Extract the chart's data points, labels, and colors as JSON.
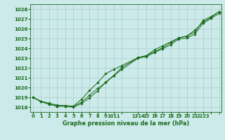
{
  "title": "Graphe pression niveau de la mer (hPa)",
  "bg_color": "#cceaea",
  "grid_color": "#aacccc",
  "line_color": "#1a6b1a",
  "marker_color": "#1a6b1a",
  "ylim": [
    1017.5,
    1028.5
  ],
  "y_ticks": [
    1018,
    1019,
    1020,
    1021,
    1022,
    1023,
    1024,
    1025,
    1026,
    1027,
    1028
  ],
  "xlim": [
    -0.3,
    23.3
  ],
  "x_positions": [
    0,
    1,
    2,
    3,
    4,
    5,
    6,
    7,
    8,
    9,
    10,
    11,
    13,
    14,
    15,
    16,
    17,
    18,
    19,
    20,
    21,
    22,
    23
  ],
  "x_labels": [
    "0",
    "1",
    "2",
    "3",
    "4",
    "5",
    "6",
    "7",
    "8",
    "9",
    "1011",
    "",
    "1314",
    "15",
    "16",
    "17",
    "18",
    "19",
    "20",
    "21",
    "2223",
    "",
    ""
  ],
  "series1_x": [
    0,
    1,
    2,
    3,
    4,
    5,
    6,
    7,
    8,
    9,
    10,
    11,
    13,
    14,
    15,
    16,
    17,
    18,
    19,
    20,
    21,
    22,
    23
  ],
  "series1_y": [
    1019.0,
    1018.6,
    1018.3,
    1018.1,
    1018.1,
    1018.05,
    1018.5,
    1019.2,
    1019.9,
    1020.5,
    1021.2,
    1021.85,
    1023.0,
    1023.15,
    1023.55,
    1023.95,
    1024.35,
    1024.95,
    1025.05,
    1025.45,
    1026.55,
    1027.05,
    1027.55
  ],
  "series2_x": [
    0,
    1,
    2,
    3,
    4,
    5,
    6,
    7,
    8,
    9,
    10,
    11,
    13,
    14,
    15,
    16,
    17,
    18,
    19,
    20,
    21,
    22,
    23
  ],
  "series2_y": [
    1019.0,
    1018.6,
    1018.4,
    1018.2,
    1018.15,
    1018.1,
    1018.8,
    1019.7,
    1020.5,
    1021.4,
    1021.85,
    1022.25,
    1023.05,
    1023.25,
    1023.65,
    1024.05,
    1024.55,
    1025.05,
    1025.25,
    1025.85,
    1026.65,
    1027.15,
    1027.75
  ],
  "series3_x": [
    0,
    1,
    2,
    3,
    4,
    5,
    6,
    7,
    8,
    9,
    10,
    11,
    13,
    14,
    15,
    16,
    17,
    18,
    19,
    20,
    21,
    22,
    23
  ],
  "series3_y": [
    1019.0,
    1018.55,
    1018.3,
    1018.1,
    1018.1,
    1018.0,
    1018.35,
    1018.95,
    1019.65,
    1020.55,
    1021.25,
    1022.05,
    1023.05,
    1023.25,
    1023.85,
    1024.25,
    1024.65,
    1025.05,
    1025.25,
    1025.65,
    1026.85,
    1027.25,
    1027.75
  ]
}
